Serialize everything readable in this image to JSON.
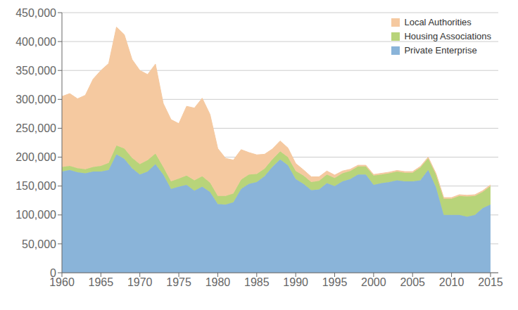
{
  "chart_data": {
    "type": "area",
    "stacked": true,
    "grid": true,
    "legend": "upper right",
    "x": [
      1960,
      1961,
      1962,
      1963,
      1964,
      1965,
      1966,
      1967,
      1968,
      1969,
      1970,
      1971,
      1972,
      1973,
      1974,
      1975,
      1976,
      1977,
      1978,
      1979,
      1980,
      1981,
      1982,
      1983,
      1984,
      1985,
      1986,
      1987,
      1988,
      1989,
      1990,
      1991,
      1992,
      1993,
      1994,
      1995,
      1996,
      1997,
      1998,
      1999,
      2000,
      2001,
      2002,
      2003,
      2004,
      2005,
      2006,
      2007,
      2008,
      2009,
      2010,
      2011,
      2012,
      2013,
      2014,
      2015
    ],
    "series": [
      {
        "name": "Private Enterprise",
        "color": "#8ab4d9",
        "values": [
          175000,
          178000,
          174000,
          172000,
          175000,
          175000,
          178000,
          205000,
          197000,
          181000,
          170000,
          175000,
          188000,
          170000,
          145000,
          149000,
          152000,
          142000,
          149000,
          140000,
          119000,
          118000,
          122000,
          145000,
          154000,
          157000,
          167000,
          183000,
          196000,
          186000,
          162000,
          154000,
          143000,
          144000,
          155000,
          150000,
          158000,
          162000,
          170000,
          170000,
          152000,
          155000,
          157000,
          160000,
          158000,
          158000,
          160000,
          178000,
          148000,
          100000,
          100000,
          100000,
          97000,
          100000,
          112000,
          118000
        ]
      },
      {
        "name": "Housing Associations",
        "color": "#b8d47a",
        "values": [
          8000,
          7000,
          7000,
          7000,
          8000,
          10000,
          12000,
          15000,
          18000,
          18000,
          18000,
          20000,
          18000,
          13000,
          13000,
          14000,
          16000,
          18000,
          18000,
          16000,
          14000,
          15000,
          15000,
          16000,
          16000,
          14000,
          13000,
          13000,
          14000,
          14000,
          14000,
          14000,
          14000,
          15000,
          15000,
          14000,
          14000,
          14000,
          14000,
          14000,
          16000,
          15000,
          15000,
          15000,
          15000,
          15000,
          22000,
          20000,
          22000,
          28000,
          28000,
          33000,
          35000,
          33000,
          28000,
          32000
        ]
      },
      {
        "name": "Local Authorities",
        "color": "#f5c9a0",
        "values": [
          122000,
          125000,
          120000,
          128000,
          152000,
          165000,
          172000,
          205000,
          197000,
          170000,
          162000,
          148000,
          155000,
          110000,
          107000,
          95000,
          120000,
          125000,
          135000,
          118000,
          82000,
          65000,
          58000,
          52000,
          38000,
          33000,
          25000,
          18000,
          18000,
          16000,
          13000,
          10000,
          9000,
          7000,
          6000,
          5000,
          4000,
          3000,
          2000,
          2000,
          2000,
          2000,
          2000,
          2000,
          2000,
          2000,
          2000,
          2000,
          2000,
          2000,
          2000,
          2000,
          2000,
          2000,
          2000,
          2000
        ]
      }
    ],
    "xlim": [
      1960,
      2016
    ],
    "xticks": [
      1960,
      1965,
      1970,
      1975,
      1980,
      1985,
      1990,
      1995,
      2000,
      2005,
      2010,
      2015
    ],
    "ylim": [
      0,
      450000
    ],
    "yticks": [
      0,
      {
        "value": 50000,
        "label": "50,000"
      },
      {
        "value": 100000,
        "label": "100,000"
      },
      {
        "value": 150000,
        "label": "150,000"
      },
      {
        "value": 200000,
        "label": "200,000"
      },
      {
        "value": 250000,
        "label": "250,000"
      },
      {
        "value": 300000,
        "label": "300,000"
      },
      {
        "value": 350000,
        "label": "350,000"
      },
      {
        "value": 400000,
        "label": "400,000"
      },
      {
        "value": 450000,
        "label": "450,000"
      }
    ]
  }
}
